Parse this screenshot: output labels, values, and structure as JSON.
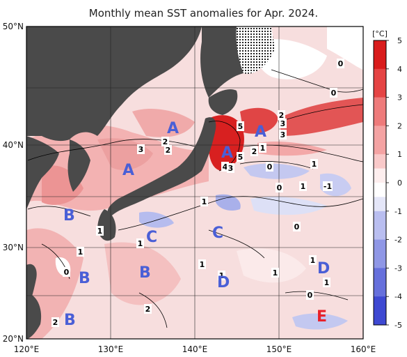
{
  "title": "Monthly mean SST anomalies for Apr. 2024.",
  "map": {
    "lat_labels": [
      "50°N",
      "40°N",
      "30°N",
      "20°N"
    ],
    "lon_labels": [
      "120°E",
      "130°E",
      "140°E",
      "150°E",
      "160°E"
    ],
    "zones": [
      {
        "text": "A",
        "red": false
      },
      {
        "text": "A",
        "red": false
      },
      {
        "text": "A",
        "red": false
      },
      {
        "text": "A",
        "red": false
      },
      {
        "text": "B",
        "red": false
      },
      {
        "text": "B",
        "red": false
      },
      {
        "text": "B",
        "red": false
      },
      {
        "text": "B",
        "red": false
      },
      {
        "text": "C",
        "red": false
      },
      {
        "text": "C",
        "red": false
      },
      {
        "text": "D",
        "red": false
      },
      {
        "text": "D",
        "red": false
      },
      {
        "text": "E",
        "red": true
      }
    ],
    "contour_labels": [
      "5",
      "3",
      "2",
      "2",
      "3",
      "4",
      "3",
      "5",
      "2",
      "1",
      "2",
      "3",
      "0",
      "1",
      "1",
      "0",
      "1",
      "-1",
      "1",
      "0",
      "1",
      "1",
      "1",
      "1",
      "0",
      "1",
      "1",
      "1",
      "2",
      "2",
      "0",
      "0",
      "0"
    ]
  },
  "colorbar": {
    "unit": "[°C]",
    "ticks": [
      "5",
      "4",
      "3",
      "2",
      "1",
      "0",
      "-1",
      "-2",
      "-3",
      "-4",
      "-5"
    ],
    "colors": {
      "positive": [
        "#fdeeee",
        "#f9c9c9",
        "#f4a3a3",
        "#ee7b7b",
        "#e54444",
        "#d91c1c"
      ],
      "negative": [
        "#e4e6f8",
        "#b9bef0",
        "#8f97e6",
        "#6670dc",
        "#3e49d2",
        "#1f2bcc"
      ]
    }
  },
  "colors": {
    "land": "#4a4a4a",
    "ocean_base": "#f6d3d3",
    "zone_blue": "#4a5fd6",
    "zone_red": "#e8222b"
  }
}
